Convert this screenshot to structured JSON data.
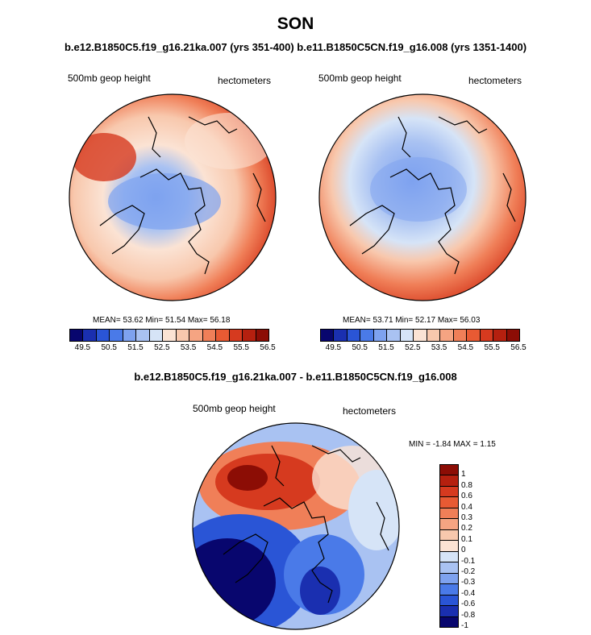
{
  "title": "SON",
  "subtitle": "b.e12.B1850C5.f19_g16.21ka.007 (yrs 351-400) b.e11.B1850C5CN.f19_g16.008 (yrs 1351-1400)",
  "diff_title": "b.e12.B1850C5.f19_g16.21ka.007 - b.e11.B1850C5CN.f19_g16.008",
  "panels": [
    {
      "left_label": "500mb geop height",
      "right_label": "hectometers",
      "stats": "MEAN=  53.62  Min=  51.54  Max=  56.18"
    },
    {
      "left_label": "500mb geop height",
      "right_label": "hectometers",
      "stats": "MEAN=  53.71  Min=  52.17  Max=  56.03"
    }
  ],
  "diff_panel": {
    "left_label": "500mb geop height",
    "right_label": "hectometers",
    "stats": "MIN =  -1.84 MAX =   1.15"
  },
  "colorbar_ticks": [
    "49.5",
    "50.5",
    "51.5",
    "52.5",
    "53.5",
    "54.5",
    "55.5",
    "56.5"
  ],
  "colorbar_colors": [
    "#08066e",
    "#1a2fb0",
    "#2a55d6",
    "#4a7ae8",
    "#7ea2ef",
    "#a9c2f2",
    "#d6e4f7",
    "#fbe3d4",
    "#f8c8ad",
    "#f5a482",
    "#f07f58",
    "#e85a33",
    "#d63a1f",
    "#b5200f",
    "#8c0d05"
  ],
  "diff_ticks": [
    "1",
    "0.8",
    "0.6",
    "0.4",
    "0.3",
    "0.2",
    "0.1",
    "0",
    "-0.1",
    "-0.2",
    "-0.3",
    "-0.4",
    "-0.6",
    "-0.8",
    "-1"
  ],
  "diff_colors": [
    "#8c0d05",
    "#b5200f",
    "#d63a1f",
    "#e85a33",
    "#f07f58",
    "#f5a482",
    "#f8c8ad",
    "#fbe3d4",
    "#d6e4f7",
    "#a9c2f2",
    "#7ea2ef",
    "#4a7ae8",
    "#2a55d6",
    "#1a2fb0",
    "#08066e"
  ]
}
